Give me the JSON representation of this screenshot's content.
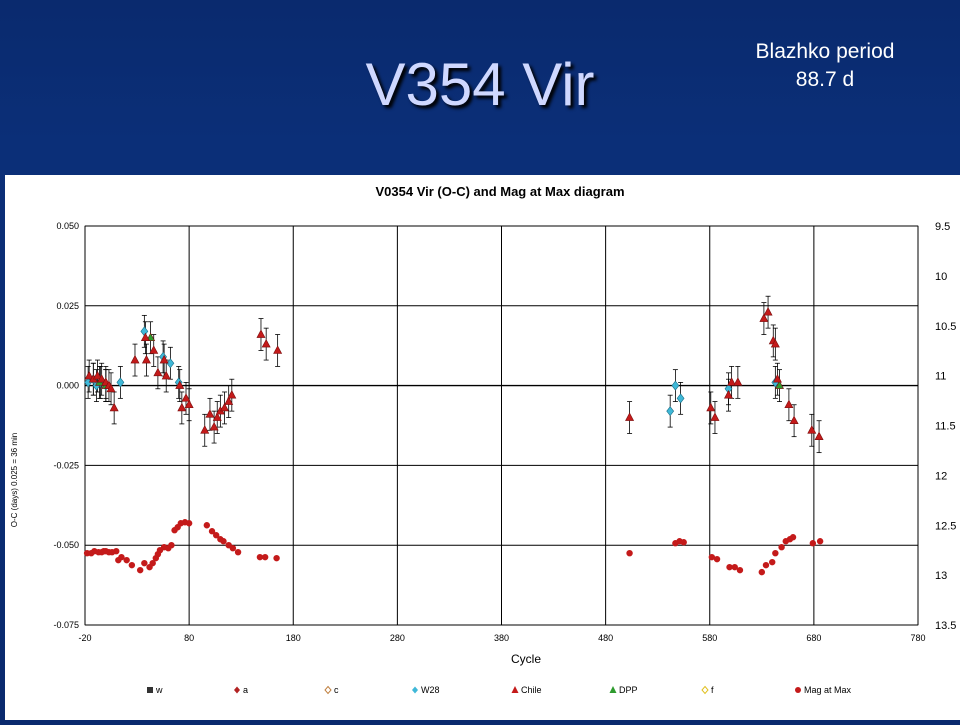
{
  "slide": {
    "title": "V354 Vir",
    "note_line1": "Blazhko period",
    "note_line2": "88.7 d"
  },
  "chart_data": {
    "type": "scatter",
    "title": "V0354 Vir (O-C) and Mag at Max diagram",
    "xlabel": "Cycle",
    "ylabel": "O-C  (days)  0.025 = 36 min",
    "xlim": [
      -20,
      780
    ],
    "ylim": [
      -0.075,
      0.05
    ],
    "y2lim": [
      9.5,
      13.5
    ],
    "y2_inverted": true,
    "x_ticks": [
      -20,
      80,
      180,
      280,
      380,
      480,
      580,
      680,
      780
    ],
    "y_ticks": [
      0.05,
      0.025,
      0.0,
      -0.025,
      -0.05,
      -0.075
    ],
    "y_tick_labels": [
      "0.050",
      "0.025",
      "0.000",
      "-0.025",
      "-0.050",
      "-0.075"
    ],
    "y2_ticks": [
      9.5,
      10,
      10.5,
      11,
      11.5,
      12,
      12.5,
      13,
      13.5
    ],
    "y2_tick_labels": [
      "9.5",
      "10",
      "10.5",
      "11",
      "11.5",
      "12",
      "12.5",
      "13",
      "13.5"
    ],
    "grid": true,
    "legend_position": "bottom",
    "legend": [
      {
        "name": "w",
        "marker": "square",
        "color": "#333333"
      },
      {
        "name": "a",
        "marker": "diamond",
        "color": "#b22222"
      },
      {
        "name": "c",
        "marker": "diamond-open",
        "color": "#c08040"
      },
      {
        "name": "W28",
        "marker": "diamond",
        "color": "#3fb8d8"
      },
      {
        "name": "Chile",
        "marker": "triangle",
        "color": "#c41a1a"
      },
      {
        "name": "DPP",
        "marker": "triangle",
        "color": "#2e9b2e"
      },
      {
        "name": "f",
        "marker": "diamond-open",
        "color": "#e0c020"
      },
      {
        "name": "Mag at Max",
        "marker": "circle",
        "color": "#c41a1a"
      }
    ],
    "series": [
      {
        "name": "W28",
        "axis": "left",
        "color": "#3fb8d8",
        "marker": "diamond",
        "points": [
          [
            -17,
            0.001
          ],
          [
            -12,
            0.002
          ],
          [
            -9,
            0.0
          ],
          [
            -5,
            0.001
          ],
          [
            0,
            0.0
          ],
          [
            14,
            0.001
          ],
          [
            37,
            0.017
          ],
          [
            55,
            0.009
          ],
          [
            62,
            0.007
          ],
          [
            70,
            0.001
          ],
          [
            542,
            -0.008
          ],
          [
            547,
            0.0
          ],
          [
            552,
            -0.004
          ],
          [
            598,
            -0.001
          ],
          [
            643,
            0.001
          ]
        ]
      },
      {
        "name": "DPP",
        "axis": "left",
        "color": "#2e9b2e",
        "marker": "triangle",
        "points": [
          [
            -6,
            0.001
          ],
          [
            0,
            0.0
          ],
          [
            43,
            0.015
          ],
          [
            647,
            0.0
          ]
        ]
      },
      {
        "name": "Chile",
        "axis": "left",
        "color": "#c41a1a",
        "marker": "triangle",
        "points": [
          [
            -16,
            0.003
          ],
          [
            -12,
            0.002
          ],
          [
            -8,
            0.003
          ],
          [
            -4,
            0.002
          ],
          [
            0,
            0.001
          ],
          [
            3,
            0.0
          ],
          [
            5,
            -0.001
          ],
          [
            8,
            -0.007
          ],
          [
            28,
            0.008
          ],
          [
            38,
            0.015
          ],
          [
            39,
            0.008
          ],
          [
            46,
            0.011
          ],
          [
            50,
            0.004
          ],
          [
            56,
            0.008
          ],
          [
            58,
            0.003
          ],
          [
            71,
            0.0
          ],
          [
            73,
            -0.007
          ],
          [
            77,
            -0.004
          ],
          [
            80,
            -0.006
          ],
          [
            95,
            -0.014
          ],
          [
            100,
            -0.009
          ],
          [
            104,
            -0.013
          ],
          [
            107,
            -0.01
          ],
          [
            110,
            -0.008
          ],
          [
            114,
            -0.007
          ],
          [
            118,
            -0.005
          ],
          [
            121,
            -0.003
          ],
          [
            149,
            0.016
          ],
          [
            154,
            0.013
          ],
          [
            165,
            0.011
          ],
          [
            503,
            -0.01
          ],
          [
            581,
            -0.007
          ],
          [
            585,
            -0.01
          ],
          [
            598,
            -0.003
          ],
          [
            601,
            0.001
          ],
          [
            607,
            0.001
          ],
          [
            632,
            0.021
          ],
          [
            636,
            0.023
          ],
          [
            641,
            0.014
          ],
          [
            643,
            0.013
          ],
          [
            645,
            0.002
          ],
          [
            656,
            -0.006
          ],
          [
            661,
            -0.011
          ],
          [
            678,
            -0.014
          ],
          [
            685,
            -0.016
          ]
        ]
      },
      {
        "name": "Mag at Max",
        "axis": "right",
        "color": "#c41a1a",
        "marker": "circle",
        "points": [
          [
            -18,
            12.78
          ],
          [
            -14,
            12.78
          ],
          [
            -11,
            12.76
          ],
          [
            -7,
            12.77
          ],
          [
            -4,
            12.77
          ],
          [
            -2,
            12.76
          ],
          [
            0,
            12.76
          ],
          [
            3,
            12.77
          ],
          [
            6,
            12.77
          ],
          [
            10,
            12.76
          ],
          [
            12,
            12.85
          ],
          [
            15,
            12.82
          ],
          [
            20,
            12.85
          ],
          [
            25,
            12.9
          ],
          [
            33,
            12.95
          ],
          [
            37,
            12.88
          ],
          [
            42,
            12.92
          ],
          [
            45,
            12.88
          ],
          [
            48,
            12.83
          ],
          [
            50,
            12.79
          ],
          [
            52,
            12.75
          ],
          [
            56,
            12.72
          ],
          [
            60,
            12.73
          ],
          [
            63,
            12.7
          ],
          [
            66,
            12.55
          ],
          [
            69,
            12.52
          ],
          [
            72,
            12.48
          ],
          [
            76,
            12.47
          ],
          [
            80,
            12.48
          ],
          [
            97,
            12.5
          ],
          [
            102,
            12.56
          ],
          [
            106,
            12.6
          ],
          [
            110,
            12.64
          ],
          [
            113,
            12.66
          ],
          [
            118,
            12.7
          ],
          [
            122,
            12.73
          ],
          [
            127,
            12.77
          ],
          [
            148,
            12.82
          ],
          [
            153,
            12.82
          ],
          [
            164,
            12.83
          ],
          [
            503,
            12.78
          ],
          [
            547,
            12.68
          ],
          [
            551,
            12.66
          ],
          [
            555,
            12.67
          ],
          [
            582,
            12.82
          ],
          [
            587,
            12.84
          ],
          [
            599,
            12.92
          ],
          [
            604,
            12.92
          ],
          [
            609,
            12.95
          ],
          [
            630,
            12.97
          ],
          [
            634,
            12.9
          ],
          [
            640,
            12.87
          ],
          [
            643,
            12.78
          ],
          [
            649,
            12.72
          ],
          [
            653,
            12.66
          ],
          [
            657,
            12.64
          ],
          [
            660,
            12.62
          ],
          [
            679,
            12.68
          ],
          [
            686,
            12.66
          ]
        ]
      }
    ]
  }
}
